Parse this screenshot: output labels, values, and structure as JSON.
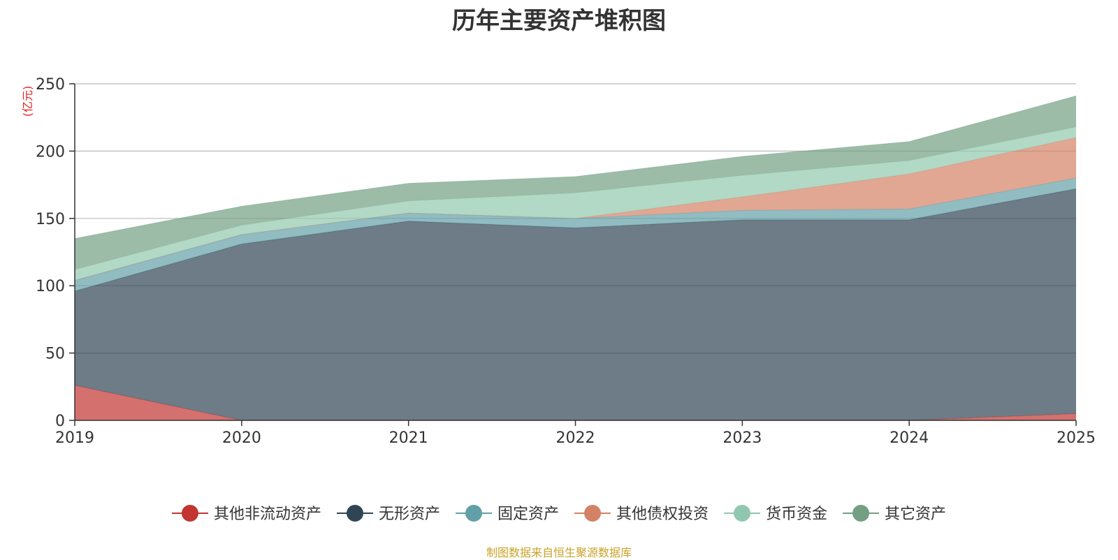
{
  "chart_data": {
    "type": "area",
    "stacked": true,
    "title": "历年主要资产堆积图",
    "ylabel": "(亿元)",
    "xlabel": "",
    "x": [
      "2019",
      "2020",
      "2021",
      "2022",
      "2023",
      "2024",
      "2025"
    ],
    "ylim": [
      0,
      250
    ],
    "yticks": [
      0,
      50,
      100,
      150,
      200,
      250
    ],
    "grid": true,
    "legend_position": "bottom",
    "series": [
      {
        "name": "其他非流动资产",
        "color": "#c23531",
        "values": [
          26,
          0,
          0,
          0,
          0,
          0,
          5
        ]
      },
      {
        "name": "无形资产",
        "color": "#2f4554",
        "values": [
          70,
          131,
          148,
          143,
          149,
          149,
          167
        ]
      },
      {
        "name": "固定资产",
        "color": "#61a0a8",
        "values": [
          8,
          7,
          6,
          7,
          7,
          8,
          8
        ]
      },
      {
        "name": "其他债权投资",
        "color": "#d48265",
        "values": [
          0,
          0,
          0,
          0,
          10,
          26,
          30
        ]
      },
      {
        "name": "货币资金",
        "color": "#91c7ae",
        "values": [
          8,
          7,
          9,
          19,
          16,
          10,
          8
        ]
      },
      {
        "name": "其它资产",
        "color": "#749f83",
        "values": [
          23,
          14,
          13,
          12,
          14,
          14,
          23
        ]
      }
    ]
  },
  "source_note": "制图数据来自恒生聚源数据库"
}
